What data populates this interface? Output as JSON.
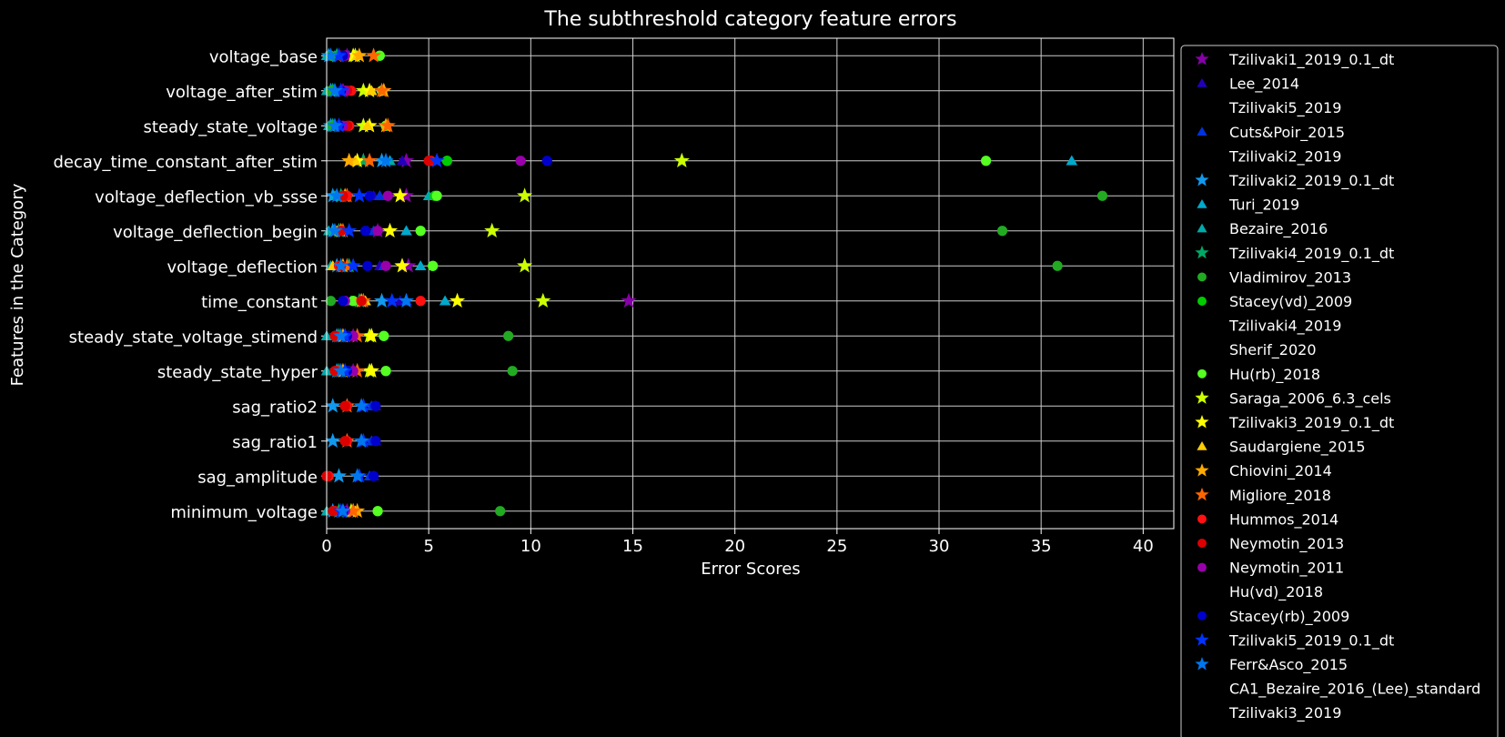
{
  "chart_data": {
    "type": "scatter",
    "title": "The subthreshold category feature errors",
    "xlabel": "Error Scores",
    "ylabel": "Features in the Category",
    "xlim": [
      0,
      41.5
    ],
    "xticks": [
      0,
      5,
      10,
      15,
      20,
      25,
      30,
      35,
      40
    ],
    "grid": true,
    "legend_position": "outside-right",
    "categories": [
      "voltage_base",
      "voltage_after_stim",
      "steady_state_voltage",
      "decay_time_constant_after_stim",
      "voltage_deflection_vb_ssse",
      "voltage_deflection_begin",
      "voltage_deflection",
      "time_constant",
      "steady_state_voltage_stimend",
      "steady_state_hyper",
      "sag_ratio2",
      "sag_ratio1",
      "sag_amplitude",
      "minimum_voltage"
    ],
    "series": [
      {
        "name": "Tzilivaki1_2019_0.1_dt",
        "marker": "star",
        "color": "#8800aa",
        "values": [
          1.0,
          0.8,
          0.6,
          3.9,
          3.9,
          2.5,
          4.0,
          14.8,
          1.3,
          1.3,
          null,
          null,
          null,
          1.0
        ]
      },
      {
        "name": "Lee_2014",
        "marker": "triangle",
        "color": "#2200bb",
        "values": [
          0.9,
          0.7,
          0.5,
          3.7,
          2.3,
          2.0,
          2.6,
          3.6,
          1.0,
          1.0,
          2.4,
          2.4,
          2.3,
          0.9
        ]
      },
      {
        "name": "Tzilivaki5_2019",
        "marker": "none",
        "color": "#000000",
        "values": [
          null,
          null,
          null,
          null,
          null,
          null,
          null,
          null,
          null,
          null,
          null,
          null,
          null,
          null
        ]
      },
      {
        "name": "Cuts&Poir_2015",
        "marker": "triangle",
        "color": "#0033dd",
        "values": [
          1.1,
          0.9,
          0.7,
          3.1,
          2.6,
          2.3,
          2.8,
          3.9,
          1.1,
          1.1,
          2.2,
          2.2,
          2.1,
          0.7
        ]
      },
      {
        "name": "Tzilivaki2_2019",
        "marker": "none",
        "color": "#000000",
        "values": [
          null,
          null,
          null,
          null,
          null,
          null,
          null,
          null,
          null,
          null,
          null,
          null,
          null,
          null
        ]
      },
      {
        "name": "Tzilivaki2_2019_0.1_dt",
        "marker": "star",
        "color": "#1199ee",
        "values": [
          0.1,
          0.2,
          0.2,
          2.7,
          0.3,
          0.3,
          0.5,
          2.7,
          0.5,
          0.5,
          0.3,
          0.3,
          0.6,
          0.3
        ]
      },
      {
        "name": "Turi_2019",
        "marker": "triangle",
        "color": "#00aacc",
        "values": [
          0.4,
          0.4,
          0.4,
          36.5,
          0.4,
          3.9,
          4.6,
          5.8,
          0.4,
          0.4,
          null,
          null,
          null,
          0.4
        ]
      },
      {
        "name": "Bezaire_2016",
        "marker": "triangle",
        "color": "#00aaaa",
        "values": [
          0.0,
          0.0,
          0.1,
          3.1,
          5.0,
          0.1,
          0.2,
          1.2,
          0.0,
          0.0,
          null,
          null,
          null,
          0.0
        ]
      },
      {
        "name": "Tzilivaki4_2019_0.1_dt",
        "marker": "star",
        "color": "#00aa66",
        "values": [
          0.5,
          0.3,
          0.3,
          1.8,
          0.7,
          0.6,
          1.1,
          1.6,
          0.6,
          0.6,
          null,
          null,
          null,
          0.6
        ]
      },
      {
        "name": "Vladimirov_2013",
        "marker": "circle",
        "color": "#22aa22",
        "values": [
          0.2,
          0.2,
          0.3,
          5.9,
          38.0,
          33.1,
          35.8,
          0.2,
          8.9,
          9.1,
          null,
          null,
          null,
          8.5
        ]
      },
      {
        "name": "Stacey(vd)_2009",
        "marker": "circle",
        "color": "#00cc00",
        "values": [
          2.6,
          2.7,
          2.9,
          5.9,
          5.3,
          4.6,
          5.2,
          1.3,
          2.8,
          2.9,
          null,
          null,
          null,
          2.5
        ]
      },
      {
        "name": "Tzilivaki4_2019",
        "marker": "none",
        "color": "#000000",
        "values": [
          null,
          null,
          null,
          null,
          null,
          null,
          null,
          null,
          null,
          null,
          null,
          null,
          null,
          null
        ]
      },
      {
        "name": "Sherif_2020",
        "marker": "none",
        "color": "#000000",
        "values": [
          null,
          null,
          null,
          null,
          null,
          null,
          null,
          null,
          null,
          null,
          null,
          null,
          null,
          null
        ]
      },
      {
        "name": "Hu(rb)_2018",
        "marker": "circle",
        "color": "#55ff22",
        "values": [
          2.6,
          2.7,
          2.9,
          32.3,
          5.4,
          4.6,
          5.2,
          1.3,
          2.8,
          2.9,
          null,
          null,
          null,
          2.5
        ]
      },
      {
        "name": "Saraga_2006_6.3_cels",
        "marker": "star",
        "color": "#ccff00",
        "values": [
          1.4,
          1.8,
          1.8,
          17.4,
          9.7,
          8.1,
          9.7,
          10.6,
          2.1,
          2.1,
          null,
          null,
          null,
          1.2
        ]
      },
      {
        "name": "Tzilivaki3_2019_0.1_dt",
        "marker": "star",
        "color": "#ffff00",
        "values": [
          1.3,
          2.1,
          2.1,
          1.5,
          3.6,
          3.1,
          3.7,
          6.4,
          2.2,
          2.2,
          null,
          null,
          null,
          1.3
        ]
      },
      {
        "name": "Saudargiene_2015",
        "marker": "triangle",
        "color": "#ffcc00",
        "values": [
          1.5,
          2.2,
          2.0,
          1.4,
          0.8,
          0.5,
          0.3,
          1.9,
          0.9,
          0.9,
          null,
          null,
          null,
          1.4
        ]
      },
      {
        "name": "Chiovini_2014",
        "marker": "star",
        "color": "#ffaa00",
        "values": [
          1.6,
          2.8,
          2.9,
          1.1,
          0.9,
          0.7,
          0.8,
          1.7,
          0.8,
          0.8,
          null,
          null,
          null,
          1.5
        ]
      },
      {
        "name": "Migliore_2018",
        "marker": "star",
        "color": "#ff6600",
        "values": [
          2.3,
          2.7,
          3.0,
          2.1,
          1.0,
          0.8,
          1.0,
          1.8,
          1.5,
          1.5,
          1.0,
          1.0,
          null,
          1.3
        ]
      },
      {
        "name": "Hummos_2014",
        "marker": "circle",
        "color": "#ff1111",
        "values": [
          0.9,
          1.2,
          1.1,
          5.1,
          1.0,
          0.7,
          0.6,
          4.6,
          0.5,
          0.5,
          1.0,
          1.0,
          0.1,
          0.4
        ]
      },
      {
        "name": "Neymotin_2013",
        "marker": "circle",
        "color": "#dd0000",
        "values": [
          0.7,
          1.0,
          1.0,
          5.0,
          0.8,
          0.7,
          0.7,
          1.7,
          0.4,
          0.4,
          0.9,
          0.9,
          0.0,
          0.3
        ]
      },
      {
        "name": "Neymotin_2011",
        "marker": "circle",
        "color": "#9900aa",
        "values": [
          0.9,
          0.9,
          0.8,
          9.5,
          3.0,
          2.5,
          2.9,
          0.9,
          1.3,
          1.3,
          null,
          null,
          null,
          0.9
        ]
      },
      {
        "name": "Hu(vd)_2018",
        "marker": "none",
        "color": "#000000",
        "values": [
          null,
          null,
          null,
          null,
          null,
          null,
          null,
          null,
          null,
          null,
          null,
          null,
          null,
          null
        ]
      },
      {
        "name": "Stacey(rb)_2009",
        "marker": "circle",
        "color": "#0000cc",
        "values": [
          0.8,
          0.7,
          0.6,
          10.8,
          2.1,
          1.9,
          2.0,
          0.8,
          1.0,
          1.0,
          2.4,
          2.4,
          2.3,
          0.8
        ]
      },
      {
        "name": "Tzilivaki5_2019_0.1_dt",
        "marker": "star",
        "color": "#0033ff",
        "values": [
          0.6,
          0.7,
          0.6,
          5.4,
          1.6,
          1.1,
          1.3,
          3.2,
          0.9,
          0.9,
          1.8,
          1.8,
          1.6,
          0.7
        ]
      },
      {
        "name": "Ferr&Asco_2015",
        "marker": "star",
        "color": "#0077ee",
        "values": [
          0.2,
          0.4,
          0.4,
          2.9,
          0.5,
          0.4,
          0.7,
          3.9,
          0.7,
          0.7,
          1.7,
          1.7,
          1.5,
          0.8
        ]
      },
      {
        "name": "CA1_Bezaire_2016_(Lee)_standard",
        "marker": "none",
        "color": "#000000",
        "values": [
          null,
          null,
          null,
          null,
          null,
          null,
          null,
          null,
          null,
          null,
          null,
          null,
          null,
          null
        ]
      },
      {
        "name": "Tzilivaki3_2019",
        "marker": "none",
        "color": "#000000",
        "values": [
          null,
          null,
          null,
          null,
          null,
          null,
          null,
          null,
          null,
          null,
          null,
          null,
          null,
          null
        ]
      }
    ]
  }
}
